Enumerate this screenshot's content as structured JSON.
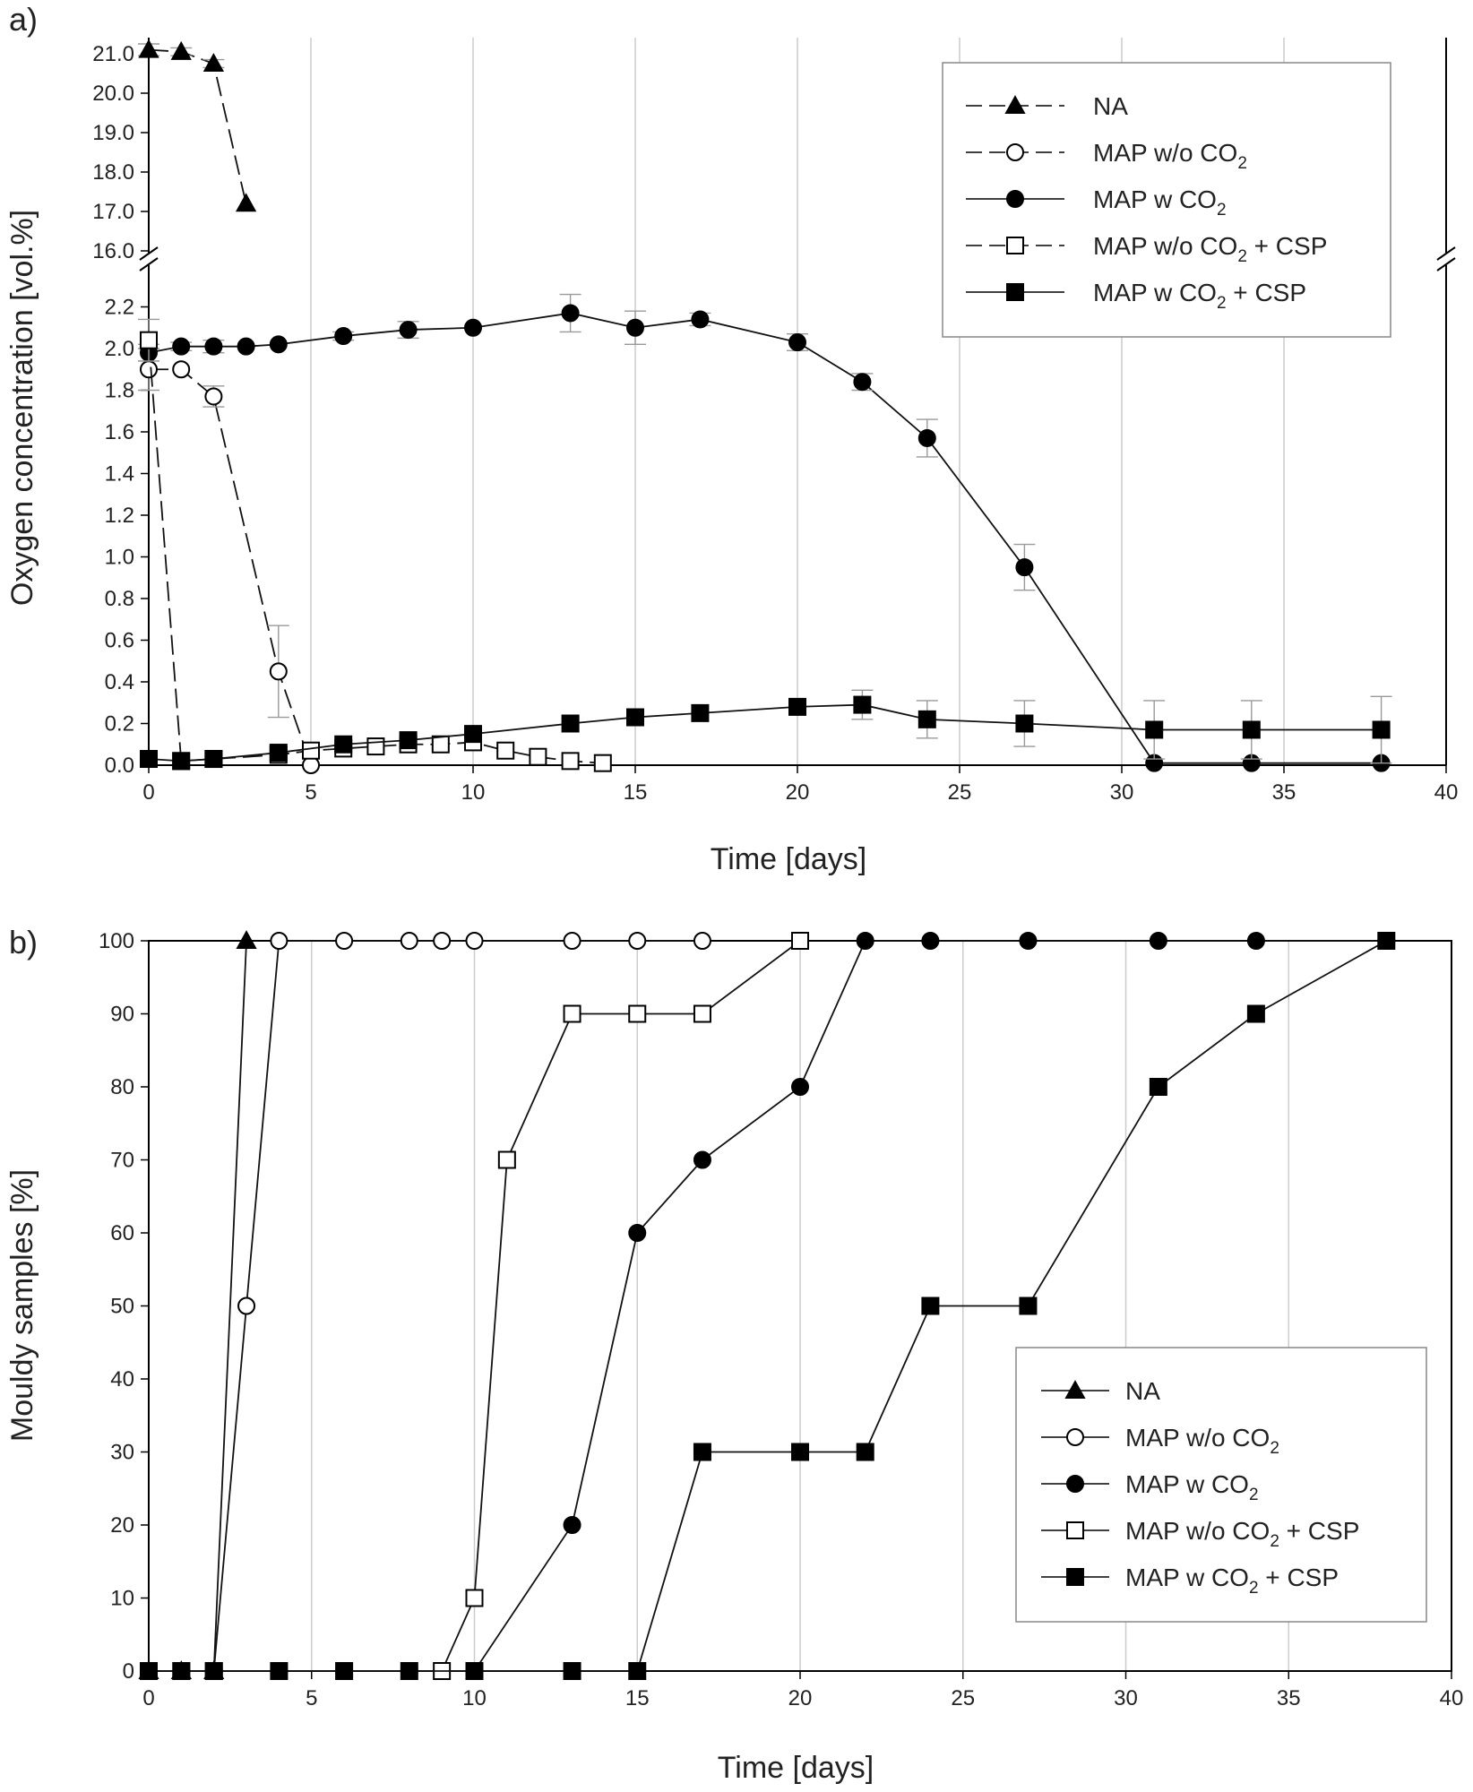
{
  "chart_data": [
    {
      "panel_label": "a)",
      "type": "line",
      "xlabel": "Time [days]",
      "ylabel": "Oxygen concentration [vol.%]",
      "xlim": [
        0,
        40
      ],
      "x_ticks": [
        "0",
        "5",
        "10",
        "15",
        "20",
        "25",
        "30",
        "35",
        "40"
      ],
      "y_break": true,
      "ylim_lower": [
        0,
        2.4
      ],
      "ylim_upper": [
        16.0,
        21.0
      ],
      "y_ticks_lower": [
        "0.0",
        "0.2",
        "0.4",
        "0.6",
        "0.8",
        "1.0",
        "1.2",
        "1.4",
        "1.6",
        "1.8",
        "2.0",
        "2.2"
      ],
      "y_ticks_upper": [
        "16.0",
        "17.0",
        "18.0",
        "19.0",
        "20.0",
        "21.0"
      ],
      "grid": "vertical",
      "legend_position": "top-right",
      "series": [
        {
          "name": "NA",
          "name_sub": "",
          "name_suffix": "",
          "marker": "triangle-filled",
          "dash": "dashed",
          "x": [
            0,
            1,
            2,
            3
          ],
          "y": [
            21.1,
            21.05,
            20.75,
            17.2
          ],
          "err": [
            0.15,
            0.1,
            0.1,
            0.0
          ]
        },
        {
          "name": "MAP w/o CO",
          "name_sub": "2",
          "name_suffix": "",
          "marker": "circle-open",
          "dash": "dashed",
          "x": [
            0,
            1,
            2,
            4,
            5
          ],
          "y": [
            1.9,
            1.9,
            1.77,
            0.45,
            0.0
          ],
          "err": [
            0.1,
            0.0,
            0.05,
            0.22,
            0.0
          ]
        },
        {
          "name": "MAP w CO",
          "name_sub": "2",
          "name_suffix": "",
          "marker": "circle-filled",
          "dash": "solid",
          "x": [
            0,
            1,
            2,
            3,
            4,
            6,
            8,
            10,
            13,
            15,
            17,
            20,
            22,
            24,
            27,
            31,
            34,
            38
          ],
          "y": [
            1.98,
            2.01,
            2.01,
            2.01,
            2.02,
            2.06,
            2.09,
            2.1,
            2.17,
            2.1,
            2.14,
            2.03,
            1.84,
            1.57,
            0.95,
            0.01,
            0.01,
            0.01
          ],
          "err": [
            0.04,
            0.02,
            0.03,
            0.0,
            0.0,
            0.02,
            0.04,
            0.0,
            0.09,
            0.08,
            0.03,
            0.04,
            0.04,
            0.09,
            0.11,
            0.0,
            0.0,
            0.0
          ]
        },
        {
          "name": "MAP w/o CO",
          "name_sub": "2",
          "name_suffix": " + CSP",
          "marker": "square-open",
          "dash": "dashed",
          "x": [
            0,
            1,
            2,
            4,
            5,
            6,
            7,
            8,
            9,
            10,
            11,
            12,
            13,
            14
          ],
          "y": [
            2.04,
            0.02,
            0.03,
            0.05,
            0.07,
            0.08,
            0.09,
            0.1,
            0.1,
            0.11,
            0.07,
            0.04,
            0.02,
            0.01
          ],
          "err": [
            0.1,
            0.0,
            0.0,
            0.0,
            0.0,
            0.0,
            0.0,
            0.0,
            0.0,
            0.0,
            0.0,
            0.0,
            0.0,
            0.0
          ]
        },
        {
          "name": "MAP w CO",
          "name_sub": "2",
          "name_suffix": " + CSP",
          "marker": "square-filled",
          "dash": "solid",
          "x": [
            0,
            1,
            2,
            4,
            6,
            8,
            10,
            13,
            15,
            17,
            20,
            22,
            24,
            27,
            31,
            34,
            38
          ],
          "y": [
            0.03,
            0.02,
            0.03,
            0.06,
            0.1,
            0.12,
            0.15,
            0.2,
            0.23,
            0.25,
            0.28,
            0.29,
            0.22,
            0.2,
            0.17,
            0.17,
            0.17
          ],
          "err": [
            0.0,
            0.0,
            0.0,
            0.0,
            0.0,
            0.0,
            0.0,
            0.0,
            0.0,
            0.0,
            0.0,
            0.07,
            0.09,
            0.11,
            0.14,
            0.14,
            0.16
          ]
        }
      ]
    },
    {
      "panel_label": "b)",
      "type": "line",
      "xlabel": "Time [days]",
      "ylabel": "Mouldy samples [%]",
      "xlim": [
        0,
        40
      ],
      "ylim": [
        0,
        100
      ],
      "x_ticks": [
        "0",
        "5",
        "10",
        "15",
        "20",
        "25",
        "30",
        "35",
        "40"
      ],
      "y_ticks": [
        "0",
        "10",
        "20",
        "30",
        "40",
        "50",
        "60",
        "70",
        "80",
        "90",
        "100"
      ],
      "grid": "vertical",
      "legend_position": "bottom-right",
      "series": [
        {
          "name": "NA",
          "name_sub": "",
          "name_suffix": "",
          "marker": "triangle-filled",
          "dash": "solid",
          "x": [
            0,
            1,
            2,
            3
          ],
          "y": [
            0,
            0,
            0,
            100
          ]
        },
        {
          "name": "MAP w/o CO",
          "name_sub": "2",
          "name_suffix": "",
          "marker": "circle-open",
          "dash": "solid",
          "x": [
            0,
            1,
            2,
            3,
            4,
            6,
            8,
            9,
            10,
            13,
            15,
            17
          ],
          "y": [
            0,
            0,
            0,
            50,
            100,
            100,
            100,
            100,
            100,
            100,
            100,
            100
          ]
        },
        {
          "name": "MAP w CO",
          "name_sub": "2",
          "name_suffix": "",
          "marker": "circle-filled",
          "dash": "solid",
          "x": [
            0,
            1,
            2,
            4,
            6,
            8,
            10,
            13,
            15,
            17,
            20,
            22,
            24,
            27,
            31,
            34,
            38
          ],
          "y": [
            0,
            0,
            0,
            0,
            0,
            0,
            0,
            20,
            60,
            70,
            80,
            100,
            100,
            100,
            100,
            100,
            100
          ]
        },
        {
          "name": "MAP w/o CO",
          "name_sub": "2",
          "name_suffix": " + CSP",
          "marker": "square-open",
          "dash": "solid",
          "x": [
            0,
            1,
            2,
            9,
            10,
            11,
            13,
            15,
            17,
            20
          ],
          "y": [
            0,
            0,
            0,
            0,
            10,
            70,
            90,
            90,
            90,
            100
          ]
        },
        {
          "name": "MAP w CO",
          "name_sub": "2",
          "name_suffix": " + CSP",
          "marker": "square-filled",
          "dash": "solid",
          "x": [
            0,
            1,
            2,
            4,
            6,
            8,
            10,
            13,
            15,
            17,
            20,
            22,
            24,
            27,
            31,
            34,
            38
          ],
          "y": [
            0,
            0,
            0,
            0,
            0,
            0,
            0,
            0,
            0,
            30,
            30,
            30,
            50,
            50,
            80,
            90,
            100
          ]
        }
      ]
    }
  ]
}
